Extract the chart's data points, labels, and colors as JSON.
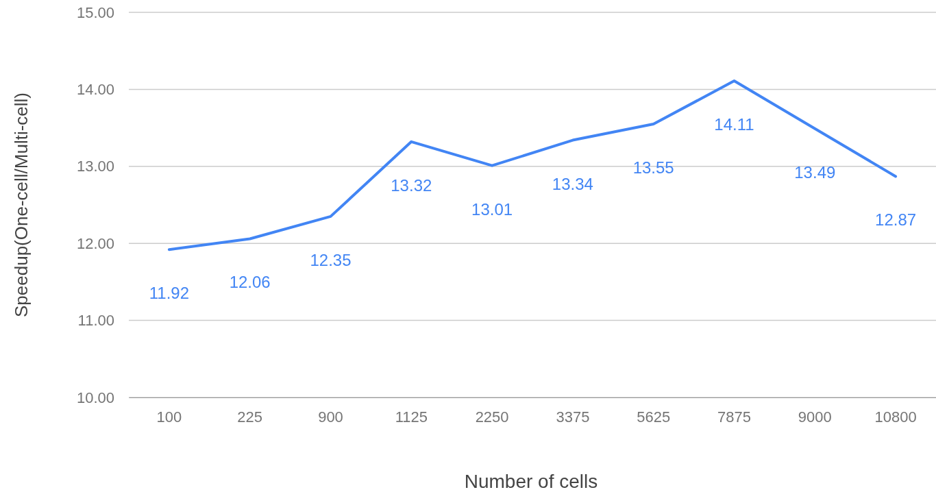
{
  "chart_data": {
    "type": "line",
    "xlabel": "Number of cells",
    "ylabel": "Speedup(One-cell/Multi-cell)",
    "categories": [
      "100",
      "225",
      "900",
      "1125",
      "2250",
      "3375",
      "5625",
      "7875",
      "9000",
      "10800"
    ],
    "series": [
      {
        "color": "#4285f4",
        "values": [
          11.92,
          12.06,
          12.35,
          13.32,
          13.01,
          13.34,
          13.55,
          14.11,
          13.49,
          12.87
        ]
      }
    ],
    "ylim": [
      10,
      15
    ],
    "yticks": [
      {
        "value": 10,
        "label": "10.00"
      },
      {
        "value": 11,
        "label": "11.00"
      },
      {
        "value": 12,
        "label": "12.00"
      },
      {
        "value": 13,
        "label": "13.00"
      },
      {
        "value": 14,
        "label": "14.00"
      },
      {
        "value": 15,
        "label": "15.00"
      }
    ],
    "grid": "y",
    "data_labels": true,
    "marker": "none",
    "line_style": "solid"
  }
}
